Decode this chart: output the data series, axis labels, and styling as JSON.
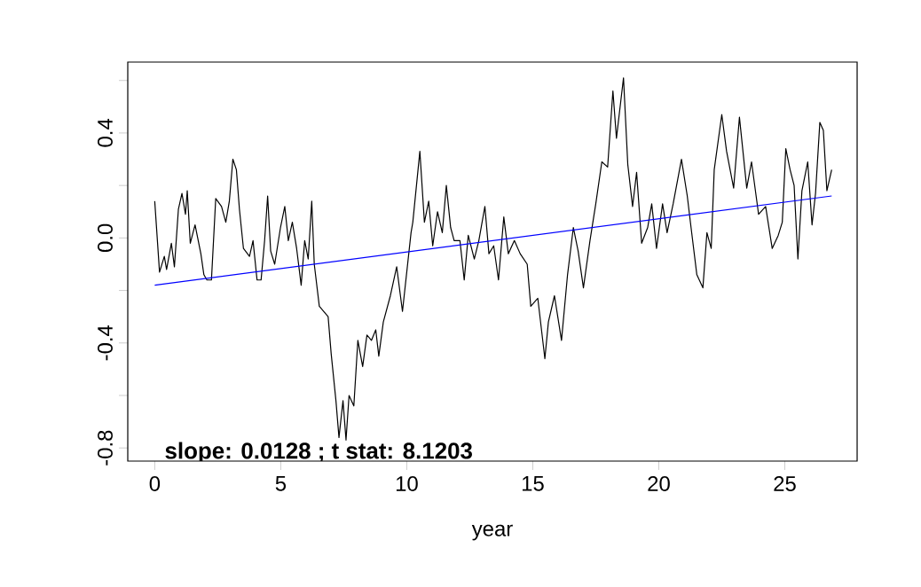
{
  "chart_data": {
    "type": "line",
    "xlabel": "year",
    "annotations": [
      "**slope:  0.0128 ; t stat: 8.1203**"
    ],
    "xlim": [
      -1.07,
      27.87
    ],
    "ylim": [
      -0.85,
      0.67
    ],
    "xticks": [
      0,
      5,
      10,
      15,
      20,
      25
    ],
    "yticks": [
      {
        "value": -0.8,
        "label": "-0.8"
      },
      {
        "value": -0.6,
        "label": null
      },
      {
        "value": -0.4,
        "label": "-0.4"
      },
      {
        "value": -0.2,
        "label": null
      },
      {
        "value": 0,
        "label": "0.0"
      },
      {
        "value": 0.2,
        "label": null
      },
      {
        "value": 0.4,
        "label": "0.4"
      },
      {
        "value": 0.6,
        "label": null
      }
    ],
    "marker": "none",
    "series": [
      {
        "color": "#000000",
        "x": [
          0,
          0.19,
          0.38,
          0.47,
          0.66,
          0.78,
          0.94,
          1.08,
          1.22,
          1.29,
          1.41,
          1.6,
          1.83,
          1.95,
          2.07,
          2.25,
          2.42,
          2.65,
          2.82,
          2.96,
          3.1,
          3.24,
          3.36,
          3.52,
          3.76,
          3.9,
          4.06,
          4.22,
          4.36,
          4.48,
          4.6,
          4.76,
          4.99,
          5.16,
          5.3,
          5.46,
          5.63,
          5.81,
          5.95,
          6.09,
          6.23,
          6.33,
          6.53,
          6.88,
          7.0,
          7.19,
          7.31,
          7.47,
          7.59,
          7.71,
          7.9,
          8.06,
          8.25,
          8.42,
          8.6,
          8.77,
          8.89,
          9.07,
          9.35,
          9.6,
          9.83,
          10.17,
          10.24,
          10.52,
          10.7,
          10.87,
          11.03,
          11.22,
          11.41,
          11.57,
          11.74,
          11.88,
          12.11,
          12.28,
          12.44,
          12.68,
          12.86,
          13.1,
          13.26,
          13.45,
          13.64,
          13.85,
          14.03,
          14.27,
          14.5,
          14.78,
          14.92,
          15.2,
          15.48,
          15.62,
          15.86,
          16.14,
          16.38,
          16.61,
          16.8,
          17.01,
          17.27,
          17.5,
          17.74,
          17.97,
          18.18,
          18.32,
          18.6,
          18.77,
          18.96,
          19.12,
          19.32,
          19.56,
          19.72,
          19.91,
          20.15,
          20.33,
          20.57,
          20.9,
          21.13,
          21.28,
          21.51,
          21.75,
          21.91,
          22.08,
          22.2,
          22.5,
          22.69,
          22.97,
          23.2,
          23.49,
          23.68,
          23.96,
          24.24,
          24.5,
          24.74,
          24.9,
          25.04,
          25.21,
          25.37,
          25.52,
          25.68,
          25.91,
          26.08,
          26.22,
          26.39,
          26.53,
          26.67,
          26.86
        ],
        "values": [
          0.14,
          -0.13,
          -0.07,
          -0.12,
          -0.02,
          -0.11,
          0.11,
          0.17,
          0.09,
          0.18,
          -0.02,
          0.05,
          -0.06,
          -0.14,
          -0.16,
          -0.16,
          0.15,
          0.12,
          0.06,
          0.14,
          0.3,
          0.26,
          0.11,
          -0.04,
          -0.07,
          -0.01,
          -0.16,
          -0.16,
          -0.01,
          0.16,
          -0.05,
          -0.1,
          0.04,
          0.12,
          -0.01,
          0.06,
          -0.04,
          -0.18,
          -0.01,
          -0.08,
          0.14,
          -0.1,
          -0.26,
          -0.3,
          -0.44,
          -0.62,
          -0.76,
          -0.62,
          -0.77,
          -0.6,
          -0.64,
          -0.39,
          -0.49,
          -0.37,
          -0.39,
          -0.35,
          -0.45,
          -0.32,
          -0.22,
          -0.11,
          -0.28,
          0.02,
          0.06,
          0.33,
          0.06,
          0.14,
          -0.03,
          0.1,
          0.02,
          0.2,
          0.04,
          -0.01,
          -0.01,
          -0.16,
          0.01,
          -0.08,
          -0.01,
          0.12,
          -0.06,
          -0.03,
          -0.16,
          0.08,
          -0.06,
          -0.01,
          -0.06,
          -0.1,
          -0.26,
          -0.23,
          -0.46,
          -0.32,
          -0.22,
          -0.39,
          -0.14,
          0.04,
          -0.05,
          -0.19,
          -0.01,
          0.13,
          0.29,
          0.27,
          0.56,
          0.38,
          0.61,
          0.28,
          0.12,
          0.25,
          -0.02,
          0.04,
          0.13,
          -0.04,
          0.13,
          0.02,
          0.13,
          0.3,
          0.16,
          0.04,
          -0.14,
          -0.19,
          0.02,
          -0.04,
          0.26,
          0.47,
          0.33,
          0.19,
          0.46,
          0.19,
          0.29,
          0.09,
          0.12,
          -0.04,
          0.01,
          0.06,
          0.34,
          0.26,
          0.2,
          -0.08,
          0.18,
          0.29,
          0.05,
          0.17,
          0.44,
          0.41,
          0.18,
          0.26
        ]
      },
      {
        "color": "#0000ff",
        "x": [
          0,
          26.86
        ],
        "values": [
          -0.18,
          0.16
        ]
      }
    ]
  }
}
